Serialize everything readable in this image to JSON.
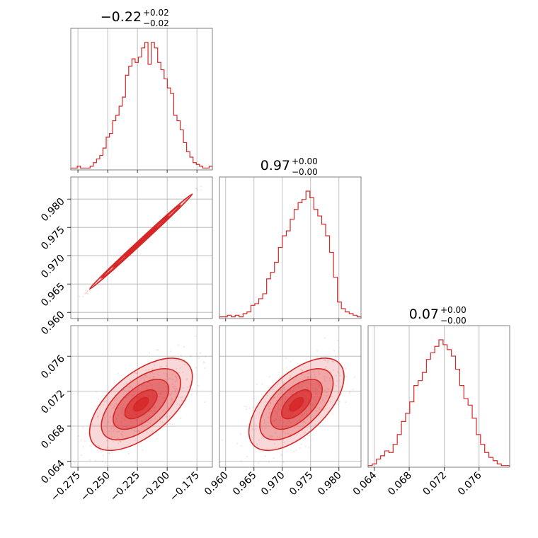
{
  "chart_data": {
    "type": "corner",
    "color": "#d62728",
    "grid": true,
    "parameters": [
      {
        "title": {
          "median": "−0.22",
          "upper": "+0.02",
          "lower": "−0.02"
        },
        "axis_range": [
          -0.281,
          -0.162
        ],
        "ticks": [
          -0.275,
          -0.25,
          -0.225,
          -0.2,
          -0.175
        ],
        "tick_labels": [
          "−0.275",
          "−0.250",
          "−0.225",
          "−0.200",
          "−0.175"
        ],
        "hist_heights": [
          1,
          1,
          2,
          1,
          1,
          1,
          2,
          4,
          6,
          8,
          12,
          18,
          20,
          27,
          30,
          35,
          40,
          52,
          57,
          61,
          59,
          62,
          67,
          70,
          58,
          70,
          67,
          59,
          55,
          50,
          45,
          42,
          30,
          27,
          22,
          15,
          10,
          7,
          4,
          3,
          2,
          1,
          1,
          2
        ]
      },
      {
        "title": {
          "median": "0.97",
          "upper": "+0.00",
          "lower": "−0.00"
        },
        "axis_range": [
          0.9589,
          0.9839
        ],
        "ticks": [
          0.96,
          0.965,
          0.97,
          0.975,
          0.98
        ],
        "tick_labels": [
          "0.960",
          "0.965",
          "0.970",
          "0.975",
          "0.980"
        ],
        "hist_heights": [
          1,
          1,
          2,
          1,
          2,
          1,
          3,
          4,
          8,
          9,
          12,
          15,
          24,
          28,
          34,
          43,
          50,
          53,
          60,
          66,
          70,
          72,
          77,
          73,
          66,
          62,
          57,
          50,
          40,
          25,
          10,
          6,
          4,
          3,
          2,
          1
        ]
      },
      {
        "title": {
          "median": "0.07",
          "upper": "+0.00",
          "lower": "−0.00"
        },
        "axis_range": [
          0.0633,
          0.0795
        ],
        "ticks": [
          0.064,
          0.068,
          0.072,
          0.076
        ],
        "tick_labels": [
          "0.064",
          "0.068",
          "0.072",
          "0.076"
        ],
        "hist_heights": [
          1,
          2,
          5,
          7,
          10,
          9,
          14,
          20,
          28,
          33,
          40,
          50,
          53,
          58,
          66,
          70,
          74,
          78,
          75,
          72,
          68,
          60,
          50,
          42,
          38,
          30,
          20,
          14,
          9,
          6,
          4,
          2,
          1,
          1
        ]
      }
    ],
    "pairs": [
      {
        "x_param": 0,
        "y_param": 1,
        "center": [
          -0.222,
          0.9725
        ],
        "sd": [
          0.018,
          0.0035
        ],
        "corr": 0.998
      },
      {
        "x_param": 0,
        "y_param": 2,
        "center": [
          -0.222,
          0.0705
        ],
        "sd": [
          0.018,
          0.0022
        ],
        "corr": 0.6
      },
      {
        "x_param": 1,
        "y_param": 2,
        "center": [
          0.9725,
          0.0705
        ],
        "sd": [
          0.0035,
          0.0022
        ],
        "corr": 0.6
      }
    ]
  }
}
